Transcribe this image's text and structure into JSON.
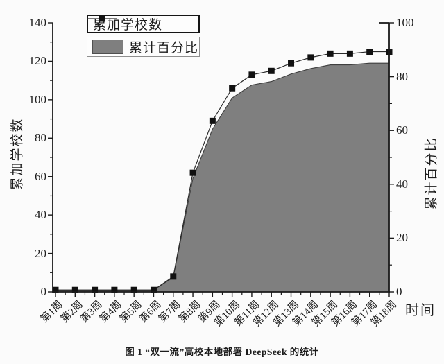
{
  "chart_data": {
    "type": "line",
    "subtype": "line-with-markers-plus-area",
    "title": "",
    "categories": [
      "第1周",
      "第2周",
      "第3周",
      "第4周",
      "第5周",
      "第6周",
      "第7周",
      "第8周",
      "第9周",
      "第10周",
      "第11周",
      "第12周",
      "第13周",
      "第14周",
      "第15周",
      "第16周",
      "第17周",
      "第18周"
    ],
    "series": [
      {
        "name": "累加学校数",
        "type": "line-markers",
        "axis": "left",
        "values": [
          1,
          1,
          1,
          1,
          1,
          1,
          8,
          62,
          89,
          106,
          113,
          115,
          119,
          122,
          124,
          124,
          125,
          125
        ]
      },
      {
        "name": "累计百分比",
        "type": "area",
        "axis": "right",
        "values": [
          0.7,
          0.7,
          0.7,
          0.7,
          0.7,
          0.7,
          5.4,
          42.2,
          60.5,
          72.1,
          76.9,
          78.2,
          81.0,
          83.0,
          84.4,
          84.4,
          85.0,
          85.0
        ]
      }
    ],
    "x_axis": {
      "label": "时间"
    },
    "left_axis": {
      "label": "累加学校数",
      "min": 0,
      "max": 140,
      "step": 20,
      "ticks": [
        0,
        20,
        40,
        60,
        80,
        100,
        120,
        140
      ]
    },
    "right_axis": {
      "label": "累计百分比",
      "min": 0,
      "max": 100,
      "step": 20,
      "ticks": [
        0,
        20,
        40,
        60,
        80,
        100
      ]
    },
    "legend": {
      "position": "inside-top-left",
      "entries": [
        "累加学校数",
        "累计百分比"
      ]
    },
    "grid": "off",
    "colors": {
      "area_fill": "#7f7f7f",
      "area_edge": "#3f3f3f",
      "line": "#2b2b2b",
      "marker": "#111111",
      "axis": "#1a1a1a",
      "background": "#fbfbfb"
    }
  },
  "caption": "图 1 “双一流”高校本地部署 DeepSeek 的统计"
}
